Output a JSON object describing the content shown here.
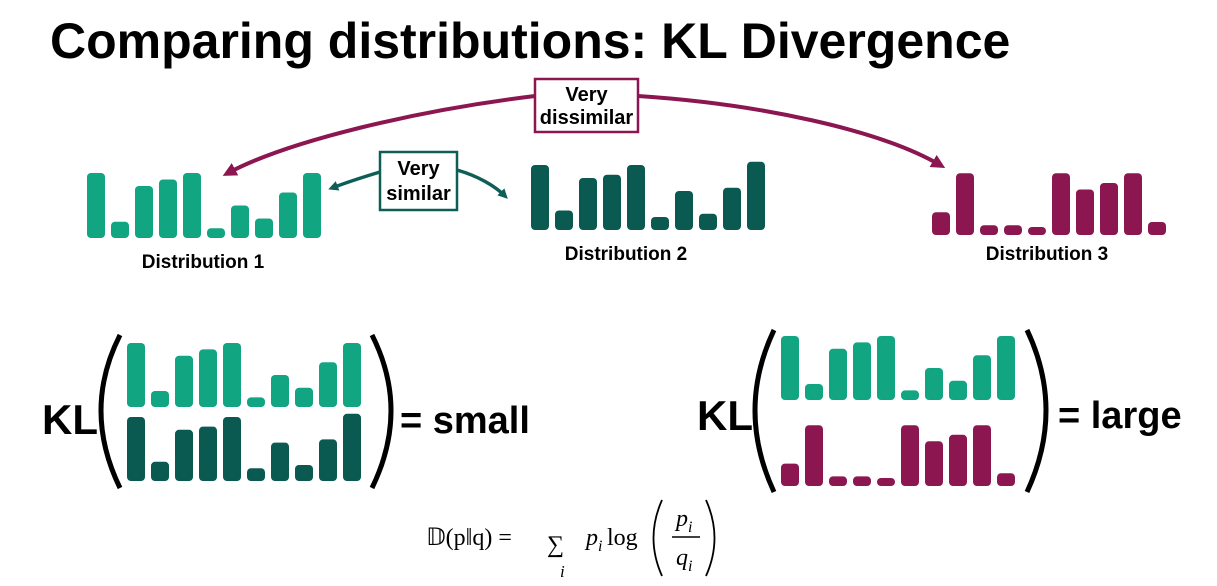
{
  "title": "Comparing distributions: KL Divergence",
  "colors": {
    "dist1": "#12a582",
    "dist2": "#0b5a52",
    "dist3": "#8b1650",
    "similar_box": "#0e5e57",
    "dissimilar_box": "#8b1650"
  },
  "distributions": [
    {
      "label": "Distribution 1",
      "values": [
        10,
        2.5,
        8,
        9,
        10,
        1.5,
        5,
        3,
        7,
        10
      ]
    },
    {
      "label": "Distribution 2",
      "values": [
        10,
        3,
        8,
        8.5,
        10,
        2,
        6,
        2.5,
        6.5,
        10.5
      ]
    },
    {
      "label": "Distribution 3",
      "values": [
        3.5,
        9.5,
        1.5,
        1.5,
        0.5,
        9.5,
        7,
        8,
        9.5,
        2
      ]
    }
  ],
  "annotations": {
    "similar": [
      "Very",
      "similar"
    ],
    "dissimilar": [
      "Very",
      "dissimilar"
    ]
  },
  "comparisons": [
    {
      "prefix": "KL",
      "result": "= small"
    },
    {
      "prefix": "KL",
      "result": "= large"
    }
  ],
  "formula": {
    "lhs": "𝔻(p‖q) =",
    "sum": "∑",
    "index": "i",
    "term": "p",
    "term_sub": "i",
    "log": "log",
    "num": "p",
    "num_sub": "i",
    "den": "q",
    "den_sub": "i"
  }
}
